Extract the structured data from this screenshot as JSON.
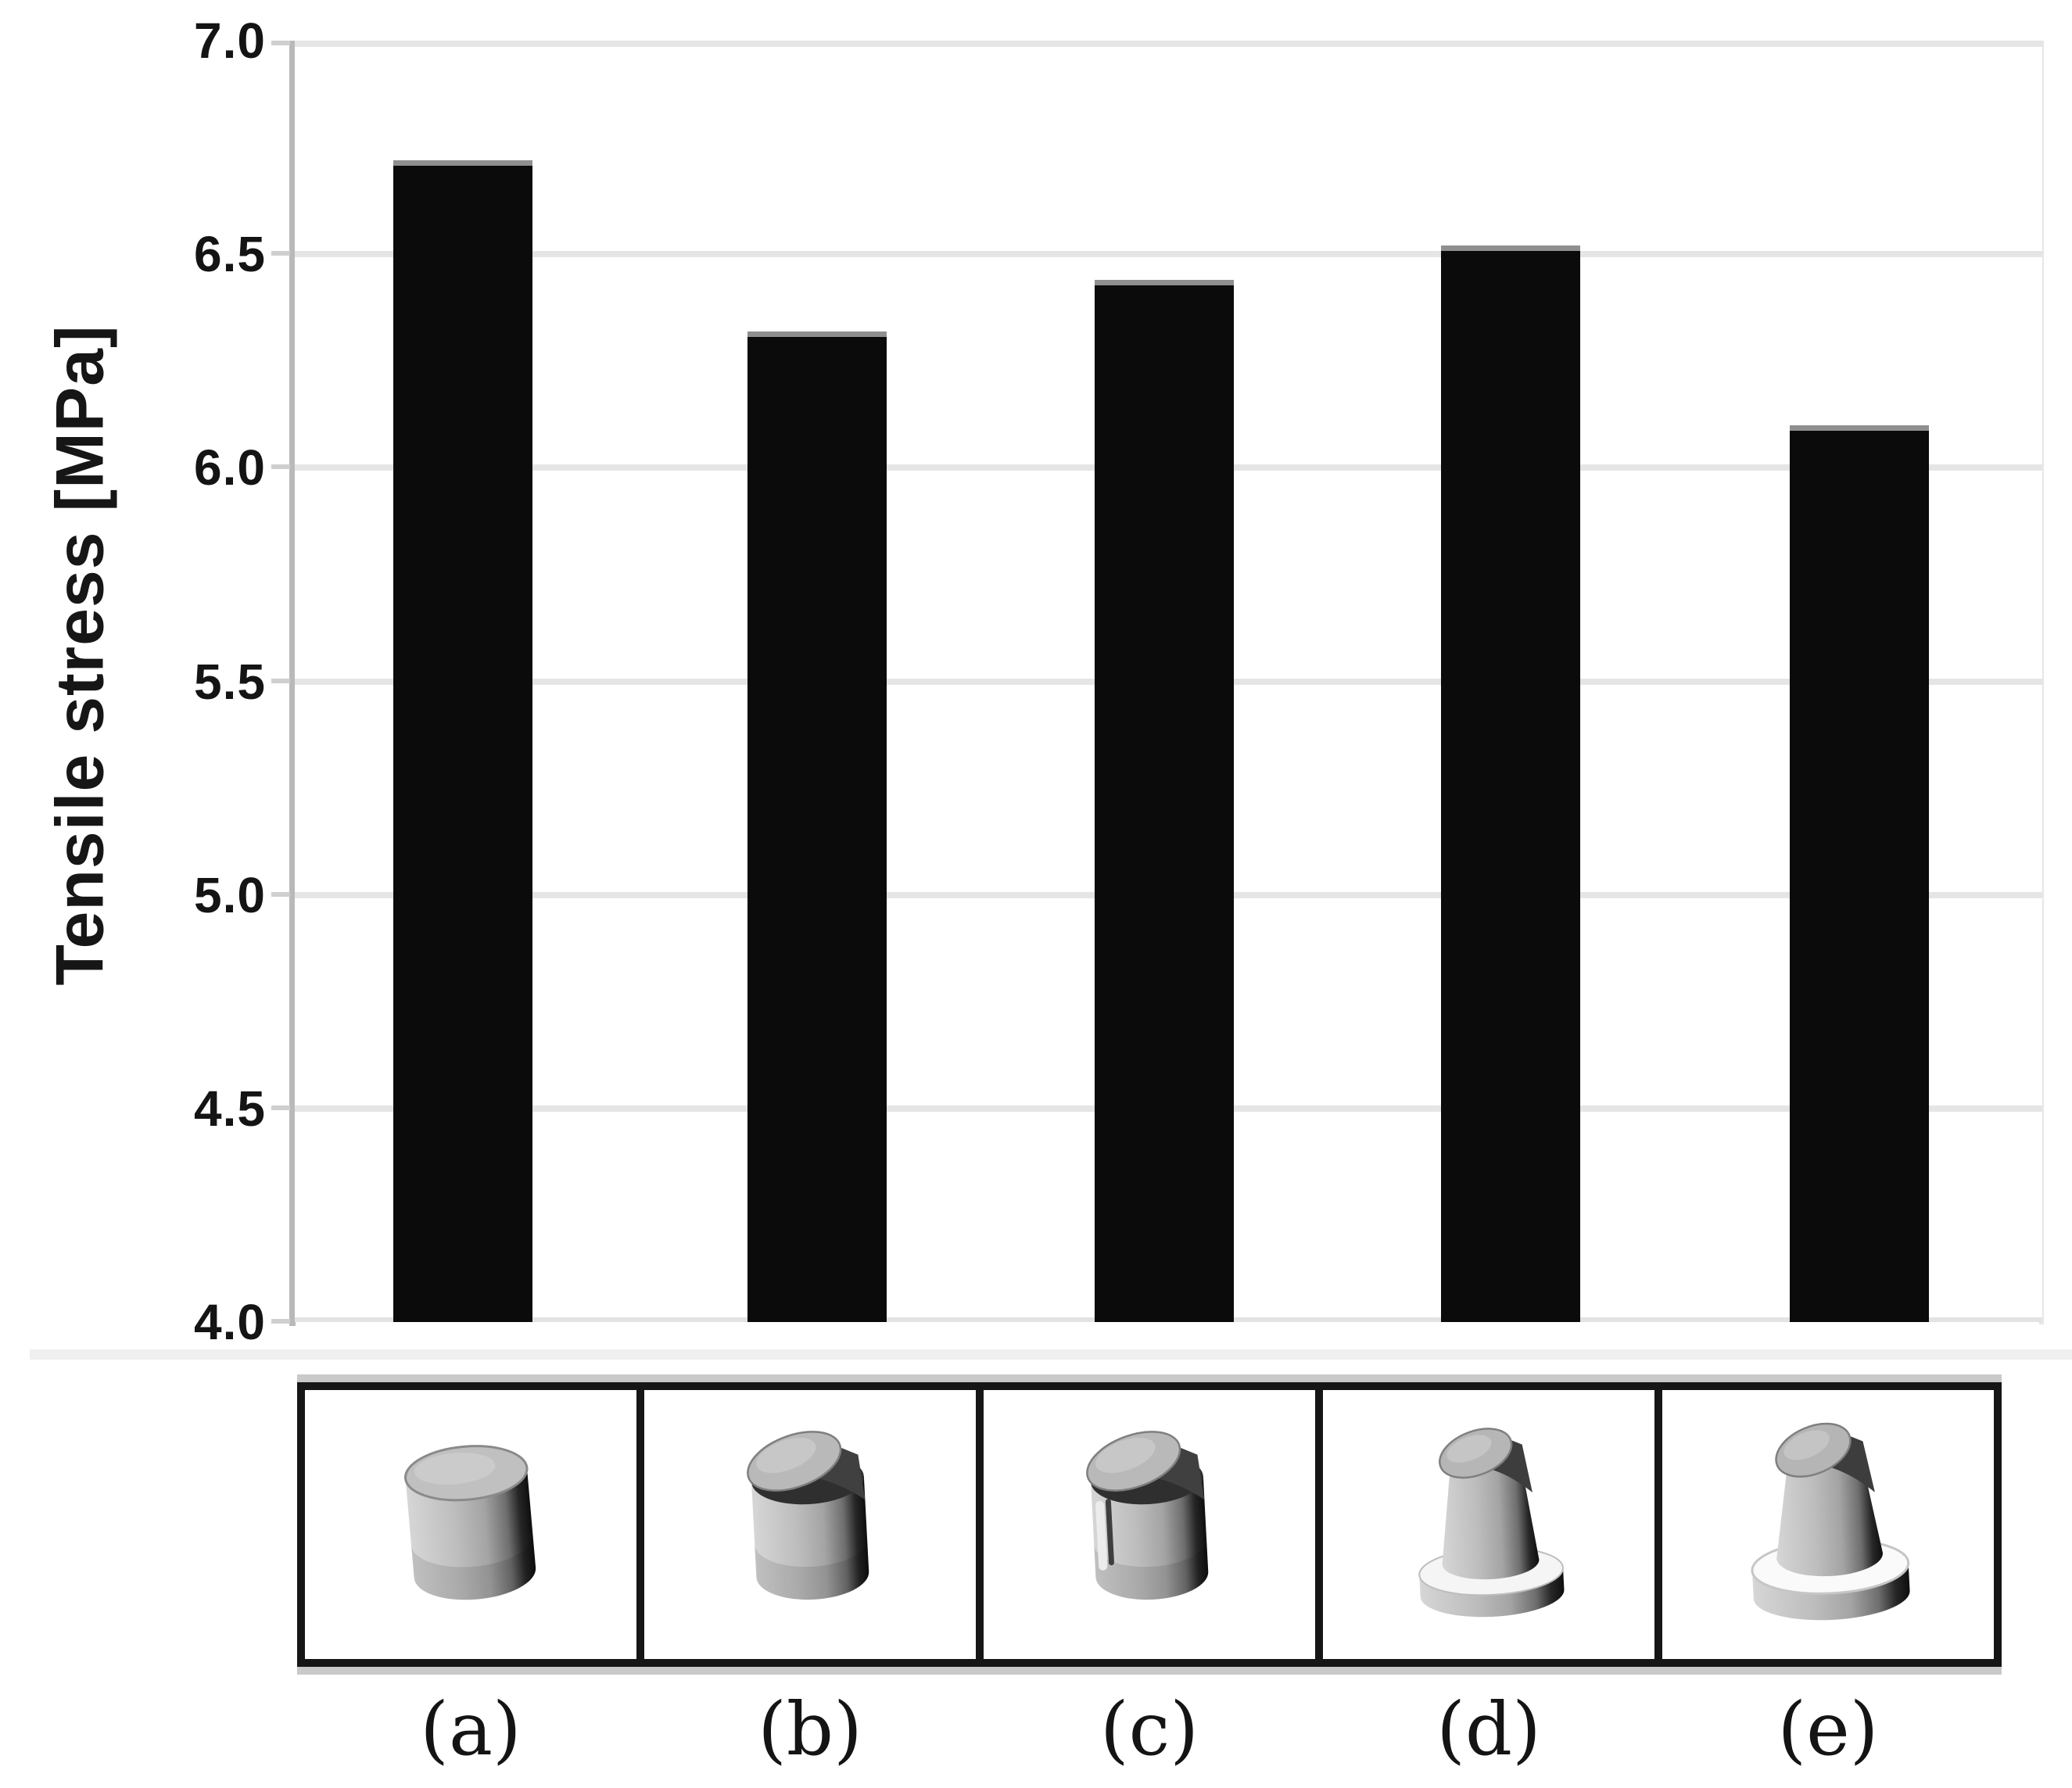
{
  "chart_data": {
    "type": "bar",
    "title": "",
    "xlabel": "",
    "ylabel": "Tensile stress [MPa]",
    "ylim": [
      4.0,
      7.0
    ],
    "yticks": [
      7.0,
      6.5,
      6.0,
      5.5,
      5.0,
      4.5,
      4.0
    ],
    "ytick_labels": [
      "7.0",
      "6.5",
      "6.0",
      "5.5",
      "5.0",
      "4.5",
      "4.0"
    ],
    "categories": [
      "(a)",
      "(b)",
      "(c)",
      "(d)",
      "(e)"
    ],
    "values": [
      6.72,
      6.32,
      6.44,
      6.52,
      6.1
    ],
    "grid": true,
    "legend_position": "none",
    "bar_color": "#0b0b0b"
  },
  "strip": {
    "labels": [
      "(a)",
      "(b)",
      "(c)",
      "(d)",
      "(e)"
    ],
    "specimens": [
      {
        "name": "specimen-a-plain-cylinder-icon",
        "shape": "plain"
      },
      {
        "name": "specimen-b-chamfer-top-cylinder-icon",
        "shape": "chamfer"
      },
      {
        "name": "specimen-c-chamfer-cylinder-side-groove-icon",
        "shape": "groove"
      },
      {
        "name": "specimen-d-tapered-cylinder-flange-icon",
        "shape": "flange"
      },
      {
        "name": "specimen-e-tapered-cylinder-wide-flange-icon",
        "shape": "wideflange"
      }
    ]
  },
  "colors": {
    "bar": "#0b0b0b",
    "bar_top_cap": "#8f8f8f",
    "gridline": "#e5e5e5",
    "axis": "#b9b9b9",
    "text": "#141414",
    "band": "#efefef",
    "strip_border": "#161616",
    "strip_halo": "#c9c9c9"
  }
}
